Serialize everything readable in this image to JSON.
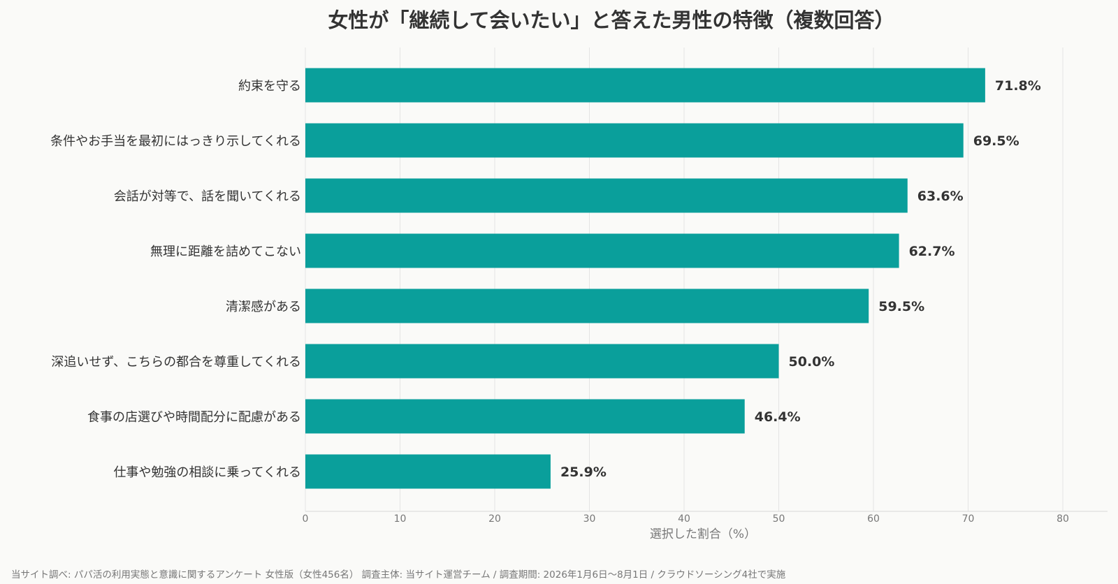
{
  "chart_data": {
    "type": "bar",
    "orientation": "horizontal",
    "title": "女性が「継続して会いたい」と答えた男性の特徴（複数回答）",
    "xlabel": "選択した割合（%）",
    "xlim": [
      0,
      80
    ],
    "x_ticks": [
      "0",
      "10",
      "20",
      "30",
      "40",
      "50",
      "60",
      "70",
      "80"
    ],
    "grid": true,
    "bar_color": "#0a9f9b",
    "categories": [
      "約束を守る",
      "条件やお手当を最初にはっきり示してくれる",
      "会話が対等で、話を聞いてくれる",
      "無理に距離を詰めてこない",
      "清潔感がある",
      "深追いせず、こちらの都合を尊重してくれる",
      "食事の店選びや時間配分に配慮がある",
      "仕事や勉強の相談に乗ってくれる"
    ],
    "values": [
      71.8,
      69.5,
      63.6,
      62.7,
      59.5,
      50.0,
      46.4,
      25.9
    ],
    "value_labels": [
      "71.8%",
      "69.5%",
      "63.6%",
      "62.7%",
      "59.5%",
      "50.0%",
      "46.4%",
      "25.9%"
    ]
  },
  "footnote": "当サイト調べ: パパ活の利用実態と意識に関するアンケート 女性版（女性456名） 調査主体: 当サイト運営チーム / 調査期間: 2026年1月6日〜8月1日 / クラウドソーシング4社で実施"
}
